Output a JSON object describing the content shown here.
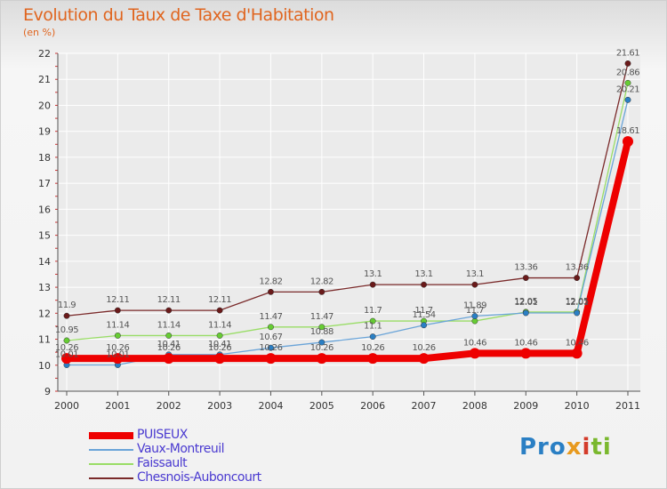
{
  "title": "Evolution du Taux de Taxe d'Habitation",
  "unit_label": "(en %)",
  "logo": {
    "text": "Proxiti",
    "part1": "Pro",
    "part2": "x",
    "part3": "i",
    "part4": "ti"
  },
  "colors": {
    "title": "#e0651f",
    "legend_text": "#4a3ad0",
    "grid": "#ffffff",
    "tick_marks": "#cc3333"
  },
  "chart_data": {
    "type": "line",
    "title": "Evolution du Taux de Taxe d'Habitation",
    "ylabel": "(en %)",
    "xlabel": "",
    "ylim": [
      9,
      22
    ],
    "yticks": [
      9,
      10,
      11,
      12,
      13,
      14,
      15,
      16,
      17,
      18,
      19,
      20,
      21,
      22
    ],
    "x": [
      "2000",
      "2001",
      "2002",
      "2003",
      "2004",
      "2005",
      "2006",
      "2007",
      "2008",
      "2009",
      "2010",
      "2011"
    ],
    "legend_position": "bottom-left",
    "series": [
      {
        "name": "PUISEUX",
        "color": "#ee0000",
        "width": 8,
        "point_color": "#ee0000",
        "values": [
          10.26,
          10.26,
          10.26,
          10.26,
          10.26,
          10.26,
          10.26,
          10.26,
          10.46,
          10.46,
          10.46,
          18.61
        ],
        "labels": [
          "10.26",
          "10.26",
          "10.26",
          "10.26",
          "10.26",
          "10.26",
          "10.26",
          "10.26",
          "10.46",
          "10.46",
          "10.46",
          "18.61"
        ]
      },
      {
        "name": "Vaux-Montreuil",
        "color": "#6aa4d8",
        "width": 1.3,
        "point_color": "#2a7fc4",
        "values": [
          10.01,
          10.01,
          10.41,
          10.41,
          10.67,
          10.88,
          11.1,
          11.54,
          11.89,
          12.01,
          12.01,
          20.21
        ],
        "labels": [
          "10.01",
          "10.01",
          "10.41",
          "10.41",
          "10.67",
          "10.88",
          "11.1",
          "11.54",
          "11.89",
          "12.01",
          "12.01",
          "20.21"
        ]
      },
      {
        "name": "Faissault",
        "color": "#99dd66",
        "width": 1.3,
        "point_color": "#66cc33",
        "values": [
          10.95,
          11.14,
          11.14,
          11.14,
          11.47,
          11.47,
          11.7,
          11.7,
          11.7,
          12.05,
          12.05,
          20.86
        ],
        "labels": [
          "10.95",
          "11.14",
          "11.14",
          "11.14",
          "11.47",
          "11.47",
          "11.7",
          "11.7",
          "11.7",
          "12.05",
          "12.05",
          "20.86"
        ]
      },
      {
        "name": "Chesnois-Auboncourt",
        "color": "#7a2a2a",
        "width": 1.3,
        "point_color": "#6a1a1a",
        "values": [
          11.9,
          12.11,
          12.11,
          12.11,
          12.82,
          12.82,
          13.1,
          13.1,
          13.1,
          13.36,
          13.36,
          21.61
        ],
        "labels": [
          "11.9",
          "12.11",
          "12.11",
          "12.11",
          "12.82",
          "12.82",
          "13.1",
          "13.1",
          "13.1",
          "13.36",
          "13.36",
          "21.61"
        ]
      }
    ]
  }
}
